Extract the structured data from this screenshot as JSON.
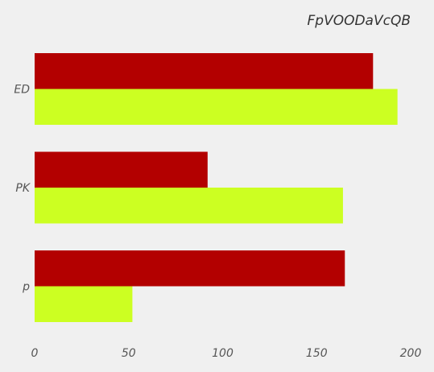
{
  "chart_data": {
    "type": "bar",
    "orientation": "horizontal",
    "title": "FpVOODaVcQB",
    "categories": [
      "ED",
      "PK",
      "p"
    ],
    "series": [
      {
        "values": [
          180,
          92,
          165
        ],
        "color": "#b30000"
      },
      {
        "values": [
          193,
          164,
          52
        ],
        "color": "#ccff22"
      }
    ],
    "xlim": [
      0,
      200
    ],
    "xticks": [
      0,
      50,
      100,
      150,
      200
    ],
    "xtick_labels": [
      "0",
      "50",
      "100",
      "150",
      "200"
    ],
    "grid": false,
    "legend": "none"
  }
}
